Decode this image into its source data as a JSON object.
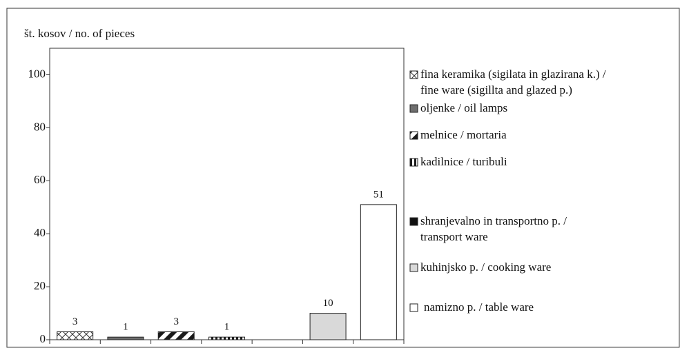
{
  "chart_data": {
    "type": "bar",
    "title": "št. kosov / no. of pieces",
    "categories": [
      null,
      null,
      null,
      null,
      null,
      null,
      null
    ],
    "values": [
      3,
      1,
      3,
      1,
      null,
      10,
      51
    ],
    "colors": [
      "#ffffff",
      "#6e6e6e",
      "#1a1a1a",
      "#1a1a1a",
      "#111111",
      "#d9d9d9",
      "#ffffff"
    ],
    "patterns": [
      "crosshatch",
      "solid",
      "diagonal",
      "vertical",
      "solid",
      "solid",
      "solid"
    ],
    "ylim": [
      0,
      110
    ],
    "yticks": [
      0,
      20,
      40,
      60,
      80,
      100
    ],
    "grid": false,
    "legend_position": "right",
    "legend": [
      [
        "fina keramika (sigilata in glazirana k.) /",
        "fine ware (sigillta and glazed p.)"
      ],
      [
        "oljenke / oil lamps"
      ],
      [
        "melnice / mortaria"
      ],
      [
        "kadilnice / turibuli"
      ],
      [
        "shranjevalno in transportno p. /",
        "transport ware"
      ],
      [
        "kuhinjsko p. / cooking ware"
      ],
      [
        "namizno p. / table ware"
      ]
    ]
  }
}
